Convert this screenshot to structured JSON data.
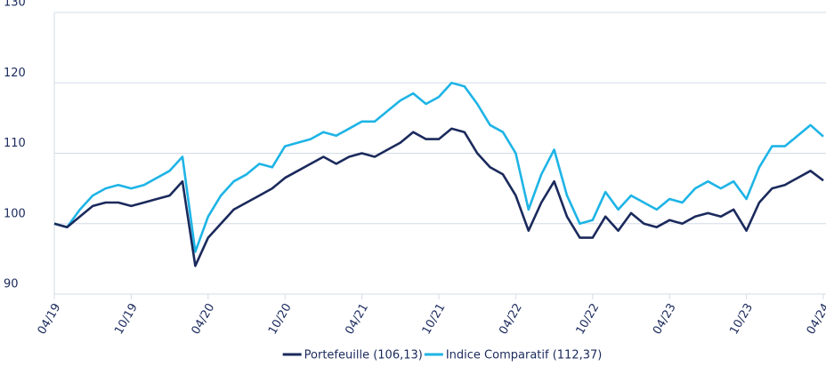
{
  "chart_data": {
    "type": "line",
    "x": [
      "04/19",
      "05/19",
      "06/19",
      "07/19",
      "08/19",
      "09/19",
      "10/19",
      "11/19",
      "12/19",
      "01/20",
      "02/20",
      "03/20",
      "04/20",
      "05/20",
      "06/20",
      "07/20",
      "08/20",
      "09/20",
      "10/20",
      "11/20",
      "12/20",
      "01/21",
      "02/21",
      "03/21",
      "04/21",
      "05/21",
      "06/21",
      "07/21",
      "08/21",
      "09/21",
      "10/21",
      "11/21",
      "12/21",
      "01/22",
      "02/22",
      "03/22",
      "04/22",
      "05/22",
      "06/22",
      "07/22",
      "08/22",
      "09/22",
      "10/22",
      "11/22",
      "12/22",
      "01/23",
      "02/23",
      "03/23",
      "04/23",
      "05/23",
      "06/23",
      "07/23",
      "08/23",
      "09/23",
      "10/23",
      "11/23",
      "12/23",
      "01/24",
      "02/24",
      "03/24",
      "04/24"
    ],
    "xticks": [
      "04/19",
      "10/19",
      "04/20",
      "10/20",
      "04/21",
      "10/21",
      "04/22",
      "10/22",
      "04/23",
      "10/23",
      "04/24"
    ],
    "series": [
      {
        "name": "Portefeuille (106,13)",
        "color": "#1b2a5c",
        "values": [
          100,
          99.5,
          101,
          102.5,
          103,
          103,
          102.5,
          103,
          103.5,
          104,
          106,
          94,
          98,
          100,
          102,
          103,
          104,
          105,
          106.5,
          107.5,
          108.5,
          109.5,
          108.5,
          109.5,
          110,
          109.5,
          110.5,
          111.5,
          113,
          112,
          112,
          113.5,
          113,
          110,
          108,
          107,
          104,
          99,
          103,
          106,
          101,
          98,
          98,
          101,
          99,
          101.5,
          100,
          99.5,
          100.5,
          100,
          101,
          101.5,
          101,
          102,
          99,
          103,
          105,
          105.5,
          106.5,
          107.5,
          106.13
        ]
      },
      {
        "name": "Indice Comparatif (112,37)",
        "color": "#1eb4e6",
        "values": [
          100,
          99.5,
          102,
          104,
          105,
          105.5,
          105,
          105.5,
          106.5,
          107.5,
          109.5,
          96,
          101,
          104,
          106,
          107,
          108.5,
          108,
          111,
          111.5,
          112,
          113,
          112.5,
          113.5,
          114.5,
          114.5,
          116,
          117.5,
          118.5,
          117,
          118,
          120,
          119.5,
          117,
          114,
          113,
          110,
          102,
          107,
          110.5,
          104,
          100,
          100.5,
          104.5,
          102,
          104,
          103,
          102,
          103.5,
          103,
          105,
          106,
          105,
          106,
          103.5,
          108,
          111,
          111,
          112.5,
          114,
          112.37
        ]
      }
    ],
    "ylim": [
      90,
      130
    ],
    "yticks": [
      90,
      100,
      110,
      120,
      130
    ],
    "grid": true,
    "legend": "bottom"
  }
}
